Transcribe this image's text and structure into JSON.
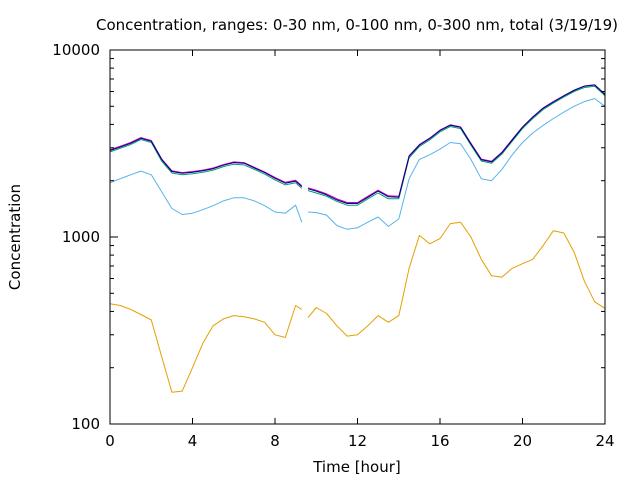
{
  "chart_data": {
    "type": "line",
    "title": "Concentration, ranges: 0-30 nm, 0-100 nm, 0-300 nm, total (3/19/19)",
    "xlabel": "Time [hour]",
    "ylabel": "Concentration",
    "xlim": [
      0,
      24
    ],
    "ylim": [
      100,
      10000
    ],
    "yscale": "log",
    "xticks": [
      "0",
      "4",
      "8",
      "12",
      "16",
      "20",
      "24"
    ],
    "yticks": [
      "100",
      "1000",
      "10000"
    ],
    "grid": false,
    "legend": "none",
    "series": [
      {
        "color": "#e69f00",
        "x": [
          0,
          0.5,
          1,
          1.5,
          2,
          2.5,
          3,
          3.5,
          4,
          4.5,
          5,
          5.5,
          6,
          6.5,
          7,
          7.5,
          8,
          8.5,
          9,
          9.3,
          9.6,
          10,
          10.5,
          11,
          11.5,
          12,
          12.5,
          13,
          13.5,
          14,
          14.5,
          15,
          15.5,
          16,
          16.5,
          17,
          17.5,
          18,
          18.5,
          19,
          19.5,
          20,
          20.5,
          21,
          21.5,
          22,
          22.5,
          23,
          23.5,
          24
        ],
        "y": [
          440,
          430,
          410,
          385,
          360,
          230,
          148,
          150,
          200,
          270,
          335,
          365,
          380,
          375,
          365,
          350,
          300,
          290,
          430,
          410,
          370,
          420,
          390,
          335,
          295,
          300,
          335,
          380,
          350,
          380,
          680,
          1020,
          920,
          980,
          1180,
          1200,
          1000,
          760,
          620,
          610,
          680,
          720,
          760,
          900,
          1080,
          1050,
          830,
          580,
          450,
          415
        ]
      },
      {
        "color": "#56b4e9",
        "x": [
          0,
          0.5,
          1,
          1.5,
          2,
          2.5,
          3,
          3.5,
          4,
          4.5,
          5,
          5.5,
          6,
          6.5,
          7,
          7.5,
          8,
          8.5,
          9,
          9.3,
          9.6,
          10,
          10.5,
          11,
          11.5,
          12,
          12.5,
          13,
          13.5,
          14,
          14.5,
          15,
          15.5,
          16,
          16.5,
          17,
          17.5,
          18,
          18.5,
          19,
          19.5,
          20,
          20.5,
          21,
          21.5,
          22,
          22.5,
          23,
          23.5,
          24
        ],
        "y": [
          1950,
          2050,
          2150,
          2250,
          2150,
          1750,
          1420,
          1320,
          1340,
          1400,
          1470,
          1560,
          1620,
          1620,
          1560,
          1470,
          1360,
          1340,
          1480,
          1200,
          1360,
          1350,
          1310,
          1150,
          1100,
          1120,
          1200,
          1280,
          1140,
          1250,
          2050,
          2600,
          2750,
          2950,
          3200,
          3150,
          2600,
          2050,
          2000,
          2300,
          2750,
          3200,
          3600,
          3950,
          4300,
          4650,
          5000,
          5300,
          5500,
          5000
        ]
      },
      {
        "color": "#009e73",
        "x": [
          0,
          0.5,
          1,
          1.5,
          2,
          2.5,
          3,
          3.5,
          4,
          4.5,
          5,
          5.5,
          6,
          6.5,
          7,
          7.5,
          8,
          8.5,
          9,
          9.3,
          9.6,
          10,
          10.5,
          11,
          11.5,
          12,
          12.5,
          13,
          13.5,
          14,
          14.5,
          15,
          15.5,
          16,
          16.5,
          17,
          17.5,
          18,
          18.5,
          19,
          19.5,
          20,
          20.5,
          21,
          21.5,
          22,
          22.5,
          23,
          23.5,
          24
        ],
        "y": [
          2850,
          2980,
          3120,
          3320,
          3200,
          2550,
          2200,
          2150,
          2180,
          2220,
          2280,
          2380,
          2450,
          2430,
          2300,
          2170,
          2020,
          1900,
          1950,
          1820,
          1770,
          1720,
          1650,
          1550,
          1480,
          1480,
          1600,
          1720,
          1600,
          1600,
          2650,
          3050,
          3300,
          3650,
          3900,
          3800,
          3100,
          2550,
          2480,
          2780,
          3250,
          3800,
          4300,
          4800,
          5200,
          5600,
          6000,
          6300,
          6400,
          5700
        ]
      },
      {
        "color": "#cc00cc",
        "x": [
          0,
          0.5,
          1,
          1.5,
          2,
          2.5,
          3,
          3.5,
          4,
          4.5,
          5,
          5.5,
          6,
          6.5,
          7,
          7.5,
          8,
          8.5,
          9,
          9.3,
          9.6,
          10,
          10.5,
          11,
          11.5,
          12,
          12.5,
          13,
          13.5,
          14,
          14.5,
          15,
          15.5,
          16,
          16.5,
          17,
          17.5,
          18,
          18.5,
          19,
          19.5,
          20,
          20.5,
          21,
          21.5,
          22,
          22.5,
          23,
          23.5,
          24
        ],
        "y": [
          2930,
          3060,
          3200,
          3400,
          3280,
          2620,
          2260,
          2210,
          2240,
          2280,
          2340,
          2440,
          2520,
          2500,
          2360,
          2230,
          2080,
          1960,
          2010,
          1880,
          1830,
          1780,
          1700,
          1600,
          1530,
          1530,
          1650,
          1780,
          1660,
          1650,
          2720,
          3120,
          3380,
          3730,
          3980,
          3880,
          3170,
          2610,
          2540,
          2840,
          3320,
          3880,
          4390,
          4900,
          5300,
          5700,
          6100,
          6420,
          6520,
          5800
        ]
      },
      {
        "color": "#000080",
        "x": [
          0,
          0.5,
          1,
          1.5,
          2,
          2.5,
          3,
          3.5,
          4,
          4.5,
          5,
          5.5,
          6,
          6.5,
          7,
          7.5,
          8,
          8.5,
          9,
          9.3,
          9.6,
          10,
          10.5,
          11,
          11.5,
          12,
          12.5,
          13,
          13.5,
          14,
          14.5,
          15,
          15.5,
          16,
          16.5,
          17,
          17.5,
          18,
          18.5,
          19,
          19.5,
          20,
          20.5,
          21,
          21.5,
          22,
          22.5,
          23,
          23.5,
          24
        ],
        "y": [
          2900,
          3030,
          3170,
          3370,
          3250,
          2600,
          2240,
          2190,
          2220,
          2260,
          2320,
          2420,
          2500,
          2480,
          2340,
          2210,
          2060,
          1940,
          1990,
          1860,
          1810,
          1760,
          1680,
          1580,
          1510,
          1510,
          1630,
          1760,
          1640,
          1630,
          2700,
          3100,
          3360,
          3710,
          3960,
          3860,
          3150,
          2590,
          2520,
          2820,
          3300,
          3860,
          4370,
          4880,
          5280,
          5680,
          6080,
          6400,
          6500,
          5780
        ]
      }
    ]
  }
}
